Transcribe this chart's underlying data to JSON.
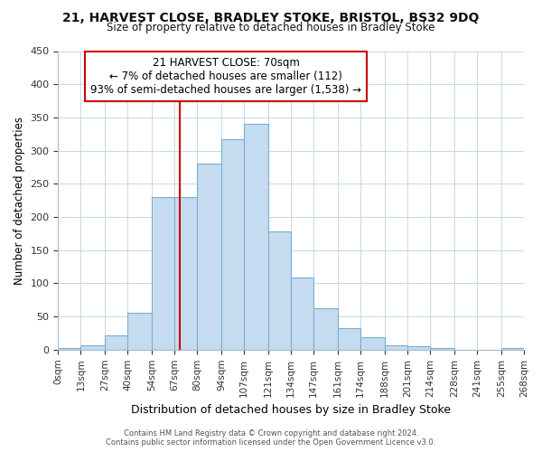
{
  "title1": "21, HARVEST CLOSE, BRADLEY STOKE, BRISTOL, BS32 9DQ",
  "title2": "Size of property relative to detached houses in Bradley Stoke",
  "xlabel": "Distribution of detached houses by size in Bradley Stoke",
  "ylabel": "Number of detached properties",
  "footer1": "Contains HM Land Registry data © Crown copyright and database right 2024.",
  "footer2": "Contains public sector information licensed under the Open Government Licence v3.0.",
  "annotation_title": "21 HARVEST CLOSE: 70sqm",
  "annotation_line1": "← 7% of detached houses are smaller (112)",
  "annotation_line2": "93% of semi-detached houses are larger (1,538) →",
  "vline_x": 70,
  "vline_color": "#cc0000",
  "bar_color": "#c5dcf0",
  "bar_edge_color": "#7aadd4",
  "bins": [
    0,
    13,
    27,
    40,
    54,
    67,
    80,
    94,
    107,
    121,
    134,
    147,
    161,
    174,
    188,
    201,
    214,
    228,
    241,
    255,
    268
  ],
  "bin_labels": [
    "0sqm",
    "13sqm",
    "27sqm",
    "40sqm",
    "54sqm",
    "67sqm",
    "80sqm",
    "94sqm",
    "107sqm",
    "121sqm",
    "134sqm",
    "147sqm",
    "161sqm",
    "174sqm",
    "188sqm",
    "201sqm",
    "214sqm",
    "228sqm",
    "241sqm",
    "255sqm",
    "268sqm"
  ],
  "counts": [
    2,
    7,
    22,
    55,
    230,
    230,
    280,
    317,
    340,
    178,
    109,
    62,
    33,
    19,
    7,
    5,
    2,
    0,
    0,
    3
  ],
  "ylim": [
    0,
    450
  ],
  "yticks": [
    0,
    50,
    100,
    150,
    200,
    250,
    300,
    350,
    400,
    450
  ],
  "background_color": "#ffffff",
  "grid_color": "#c8d8e8",
  "spine_color": "#aabbcc"
}
